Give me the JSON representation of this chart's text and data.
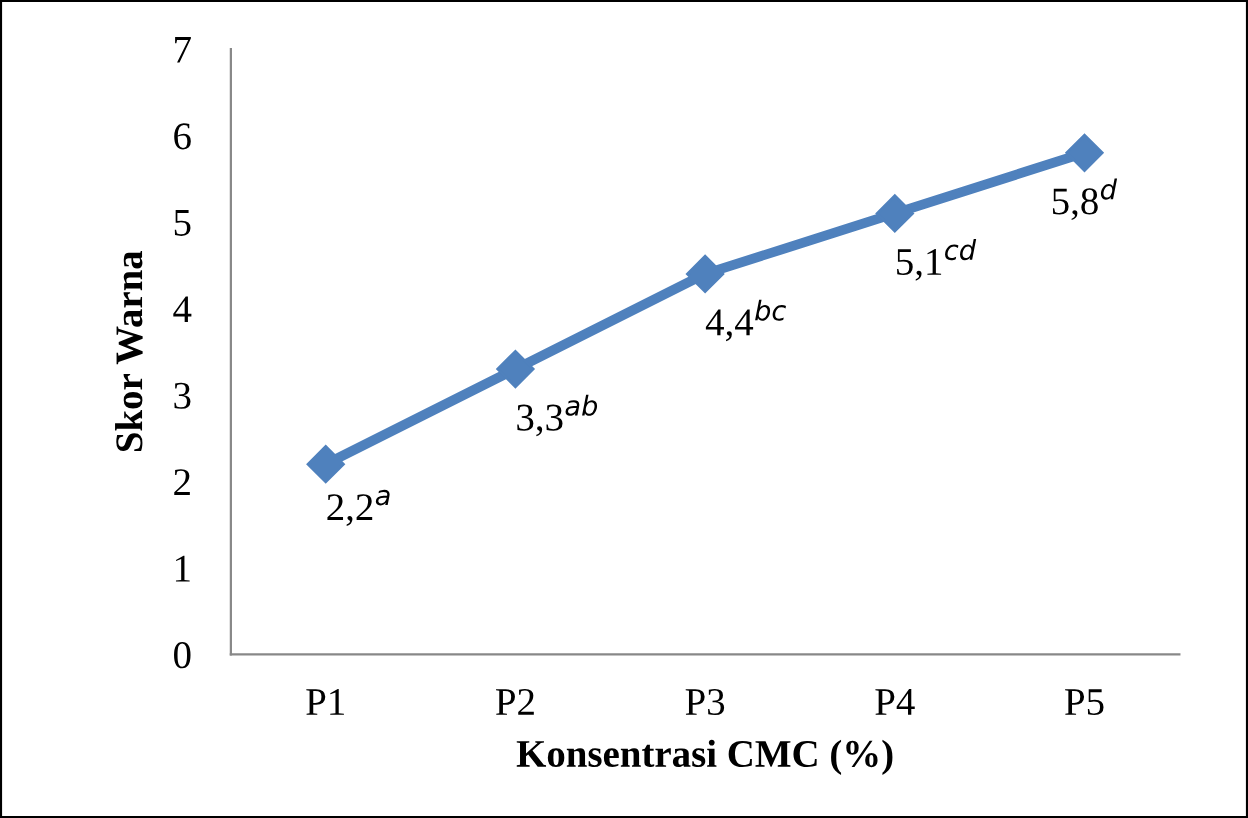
{
  "chart_data": {
    "type": "line",
    "xlabel": "Konsentrasi CMC (%)",
    "ylabel": "Skor Warna",
    "categories": [
      "P1",
      "P2",
      "P3",
      "P4",
      "P5"
    ],
    "series": [
      {
        "color": "#4f81bd",
        "values": [
          2.2,
          3.3,
          4.4,
          5.1,
          5.8
        ],
        "value_labels": [
          "2,2$^{a}$",
          "3,3$^{ab}$",
          "4,4$^{bc}$",
          "5,1$^{cd}$",
          "5,8$^{d}$"
        ]
      }
    ],
    "ylim": [
      0,
      7
    ],
    "yticks": [
      0,
      1,
      2,
      3,
      4,
      5,
      6,
      7
    ],
    "grid": false,
    "legend": false,
    "marker": "diamond",
    "line_style": "solid"
  }
}
